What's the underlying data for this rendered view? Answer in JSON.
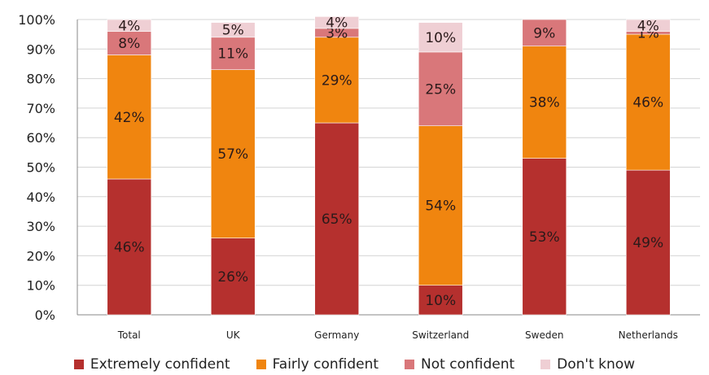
{
  "chart_data": {
    "type": "bar",
    "stacked": true,
    "categories": [
      "Total",
      "UK",
      "Germany",
      "Switzerland",
      "Sweden",
      "Netherlands"
    ],
    "y_ticks": [
      "0%",
      "10%",
      "20%",
      "30%",
      "40%",
      "50%",
      "60%",
      "70%",
      "80%",
      "90%",
      "100%"
    ],
    "ylim": [
      0,
      100
    ],
    "grid": true,
    "legend_position": "bottom",
    "series": [
      {
        "name": "Extremely confident",
        "color": "#b5302e",
        "values": [
          46,
          26,
          65,
          10,
          53,
          49
        ],
        "labels": [
          "46%",
          "26%",
          "65%",
          "10%",
          "53%",
          "49%"
        ]
      },
      {
        "name": "Fairly confident",
        "color": "#f0850f",
        "values": [
          42,
          57,
          29,
          54,
          38,
          46
        ],
        "labels": [
          "42%",
          "57%",
          "29%",
          "54%",
          "38%",
          "46%"
        ]
      },
      {
        "name": "Not confident",
        "color": "#d9777a",
        "values": [
          8,
          11,
          3,
          25,
          9,
          1
        ],
        "labels": [
          "8%",
          "11%",
          "3%",
          "25%",
          "9%",
          "1%"
        ]
      },
      {
        "name": "Don't know",
        "color": "#efcfd4",
        "values": [
          4,
          5,
          4,
          10,
          0,
          4
        ],
        "labels": [
          "4%",
          "5%",
          "4%",
          "10%",
          "",
          "4%"
        ]
      }
    ]
  }
}
